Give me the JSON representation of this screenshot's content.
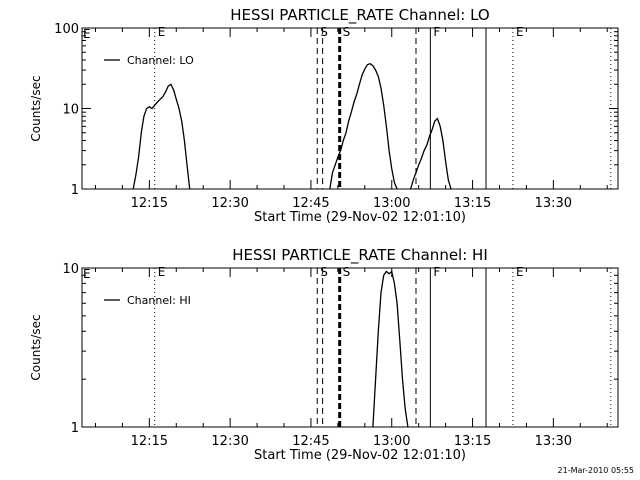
{
  "timestamp": "21-Mar-2010 05:55",
  "chart_data": [
    {
      "type": "line",
      "title": "HESSI PARTICLE_RATE Channel: LO",
      "xlabel": "Start Time (29-Nov-02 12:01:10)",
      "ylabel": "Counts/sec",
      "yscale": "log",
      "xlim": [
        "12:02:30",
        "13:42:00"
      ],
      "ylim": [
        1,
        100
      ],
      "xticks": [
        "12:15",
        "12:30",
        "12:45",
        "13:00",
        "13:15",
        "13:30"
      ],
      "yticks": [
        "1",
        "10",
        "100"
      ],
      "legend": {
        "placement": "top-left",
        "entries": [
          "Channel: LO"
        ]
      },
      "series": [
        {
          "name": "Channel: LO",
          "segments": [
            [
              [
                "12:12:00",
                1
              ],
              [
                "12:12:30",
                1.5
              ],
              [
                "12:13:00",
                2.5
              ],
              [
                "12:13:30",
                5
              ],
              [
                "12:14:00",
                8
              ],
              [
                "12:14:30",
                10
              ],
              [
                "12:15:00",
                10.5
              ],
              [
                "12:15:30",
                10
              ],
              [
                "12:16:00",
                11
              ],
              [
                "12:16:30",
                12
              ],
              [
                "12:17:00",
                13
              ],
              [
                "12:17:30",
                14
              ],
              [
                "12:18:00",
                16
              ],
              [
                "12:18:30",
                19
              ],
              [
                "12:19:00",
                20
              ],
              [
                "12:19:30",
                17
              ],
              [
                "12:20:00",
                13
              ],
              [
                "12:20:30",
                10
              ],
              [
                "12:21:00",
                7
              ],
              [
                "12:21:30",
                4
              ],
              [
                "12:22:00",
                2
              ],
              [
                "12:22:30",
                1
              ]
            ],
            [
              [
                "12:48:30",
                1
              ],
              [
                "12:49:00",
                1.6
              ],
              [
                "12:49:30",
                2
              ],
              [
                "12:50:00",
                2.5
              ],
              [
                "12:50:30",
                3
              ],
              [
                "12:51:00",
                4
              ],
              [
                "12:51:30",
                5
              ],
              [
                "12:52:00",
                7
              ],
              [
                "12:52:30",
                9
              ],
              [
                "12:53:00",
                12
              ],
              [
                "12:53:30",
                15
              ],
              [
                "12:54:00",
                20
              ],
              [
                "12:54:30",
                26
              ],
              [
                "12:55:00",
                31
              ],
              [
                "12:55:30",
                35
              ],
              [
                "12:56:00",
                36
              ],
              [
                "12:56:30",
                34
              ],
              [
                "12:57:00",
                30
              ],
              [
                "12:57:30",
                25
              ],
              [
                "12:58:00",
                18
              ],
              [
                "12:58:30",
                11
              ],
              [
                "12:59:00",
                6
              ],
              [
                "12:59:30",
                3
              ],
              [
                "13:00:00",
                1.8
              ],
              [
                "13:00:30",
                1.2
              ],
              [
                "13:01:00",
                1
              ]
            ],
            [
              [
                "13:03:30",
                1
              ],
              [
                "13:04:00",
                1.3
              ],
              [
                "13:04:30",
                1.6
              ],
              [
                "13:05:00",
                2
              ],
              [
                "13:05:30",
                2.4
              ],
              [
                "13:06:00",
                3
              ],
              [
                "13:06:30",
                3.5
              ],
              [
                "13:07:00",
                4.5
              ],
              [
                "13:07:30",
                5.5
              ],
              [
                "13:08:00",
                7
              ],
              [
                "13:08:30",
                7.5
              ],
              [
                "13:09:00",
                6
              ],
              [
                "13:09:30",
                4
              ],
              [
                "13:10:00",
                2.2
              ],
              [
                "13:10:30",
                1.3
              ],
              [
                "13:11:00",
                1
              ]
            ]
          ]
        }
      ],
      "vlines": [
        {
          "time": "12:16:00",
          "style": "dotted",
          "label": "E"
        },
        {
          "time": "12:46:10",
          "style": "dashed",
          "label": "S"
        },
        {
          "time": "12:47:10",
          "style": "dashed",
          "label": ""
        },
        {
          "time": "12:50:20",
          "style": "thick-dashed",
          "label": "S"
        },
        {
          "time": "13:04:30",
          "style": "dashed",
          "label": ""
        },
        {
          "time": "13:07:10",
          "style": "solid",
          "label": "F"
        },
        {
          "time": "13:17:30",
          "style": "solid",
          "label": ""
        },
        {
          "time": "13:22:30",
          "style": "dotted",
          "label": "E"
        },
        {
          "time": "13:40:40",
          "style": "dotted",
          "label": ""
        }
      ],
      "left_edge_label": "E"
    },
    {
      "type": "line",
      "title": "HESSI PARTICLE_RATE Channel: HI",
      "xlabel": "Start Time (29-Nov-02 12:01:10)",
      "ylabel": "Counts/sec",
      "yscale": "log",
      "xlim": [
        "12:02:30",
        "13:42:00"
      ],
      "ylim": [
        1,
        10
      ],
      "xticks": [
        "12:15",
        "12:30",
        "12:45",
        "13:00",
        "13:15",
        "13:30"
      ],
      "yticks": [
        "1",
        "10"
      ],
      "legend": {
        "placement": "top-left",
        "entries": [
          "Channel: HI"
        ]
      },
      "series": [
        {
          "name": "Channel: HI",
          "segments": [
            [
              [
                "12:56:30",
                1
              ],
              [
                "12:57:00",
                2
              ],
              [
                "12:57:30",
                4
              ],
              [
                "12:58:00",
                7
              ],
              [
                "12:58:30",
                9
              ],
              [
                "12:59:00",
                9.5
              ],
              [
                "12:59:30",
                9.2
              ],
              [
                "13:00:00",
                9.5
              ],
              [
                "13:00:30",
                8
              ],
              [
                "13:01:00",
                6
              ],
              [
                "13:01:30",
                3.5
              ],
              [
                "13:02:00",
                2
              ],
              [
                "13:02:30",
                1.3
              ],
              [
                "13:03:00",
                1
              ]
            ]
          ]
        }
      ],
      "vlines": [
        {
          "time": "12:16:00",
          "style": "dotted",
          "label": "E"
        },
        {
          "time": "12:46:10",
          "style": "dashed",
          "label": "S"
        },
        {
          "time": "12:47:10",
          "style": "dashed",
          "label": ""
        },
        {
          "time": "12:50:20",
          "style": "thick-dashed",
          "label": "S"
        },
        {
          "time": "13:04:30",
          "style": "dashed",
          "label": ""
        },
        {
          "time": "13:07:10",
          "style": "solid",
          "label": "F"
        },
        {
          "time": "13:17:30",
          "style": "solid",
          "label": ""
        },
        {
          "time": "13:22:30",
          "style": "dotted",
          "label": "E"
        },
        {
          "time": "13:40:40",
          "style": "dotted",
          "label": ""
        }
      ],
      "left_edge_label": "E"
    }
  ]
}
